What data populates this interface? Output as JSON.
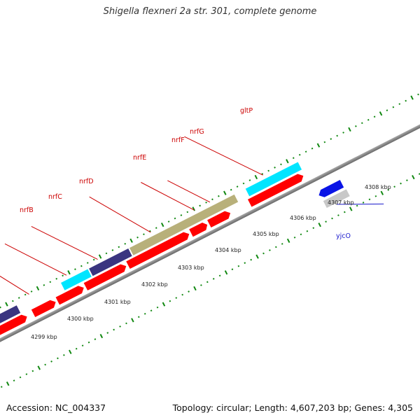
{
  "header": {
    "title": "Shigella flexneri 2a str. 301, complete genome"
  },
  "footer": {
    "accession": "Accession: NC_004337",
    "summary": "Topology: circular; Length: 4,607,203 bp; Genes: 4,305"
  },
  "kbp_labels": [
    "4299 kbp",
    "4300 kbp",
    "4301 kbp",
    "4302 kbp",
    "4303 kbp",
    "4304 kbp",
    "4305 kbp",
    "4306 kbp",
    "4307 kbp",
    "4308 kbp"
  ],
  "genes": {
    "nrfB": "nrfB",
    "nrfC": "nrfC",
    "nrfD": "nrfD",
    "nrfE": "nrfE",
    "nrfF": "nrfF",
    "nrfG": "nrfG",
    "gltP": "gltP",
    "yjcO": "yjcO"
  },
  "colors": {
    "cds_red": "#ff0000",
    "cog_cyan": "#00e5ff",
    "cog_navy": "#3a3580",
    "cog_khaki": "#b8b07a",
    "cog_blue": "#0a14e6",
    "cog_grey": "#c8c8c8",
    "backbone": "#888888",
    "tick_green": "#118811",
    "label_red": "#cc0000",
    "label_blue": "#1a1acc"
  }
}
